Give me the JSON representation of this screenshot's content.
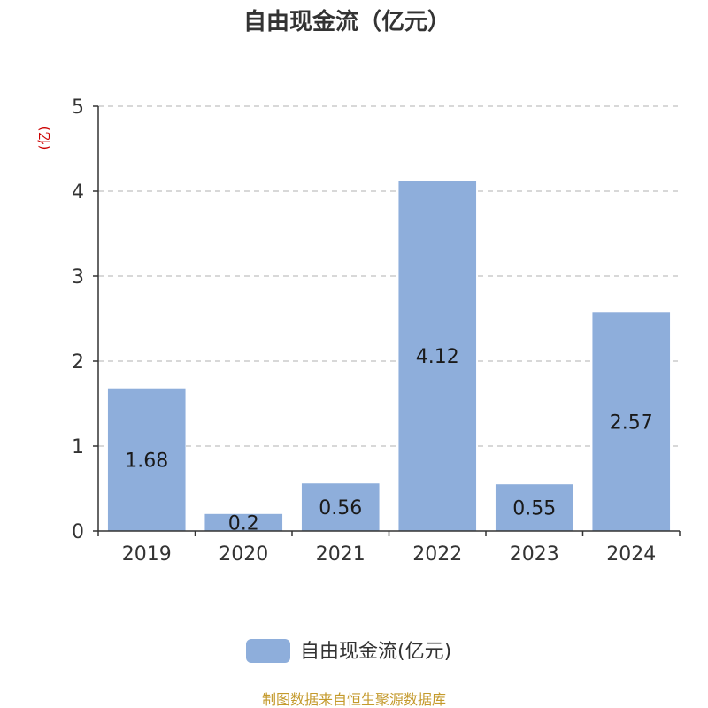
{
  "chart_data": {
    "type": "bar",
    "title": "自由现金流（亿元）",
    "ylabel": "(亿)",
    "categories": [
      "2019",
      "2020",
      "2021",
      "2022",
      "2023",
      "2024"
    ],
    "series": [
      {
        "name": "自由现金流(亿元)",
        "values": [
          1.68,
          0.2,
          0.56,
          4.12,
          0.55,
          2.57
        ]
      }
    ],
    "ylim": [
      0,
      5
    ],
    "yticks": [
      0,
      1,
      2,
      3,
      4,
      5
    ],
    "grid": true,
    "legend": "bottom-center"
  },
  "source": "制图数据来自恒生聚源数据库",
  "colors": {
    "bar": "#8eaedb",
    "axis": "#333333",
    "grid": "#cccccc",
    "unit": "#cc0000",
    "source": "#c49a2c"
  }
}
